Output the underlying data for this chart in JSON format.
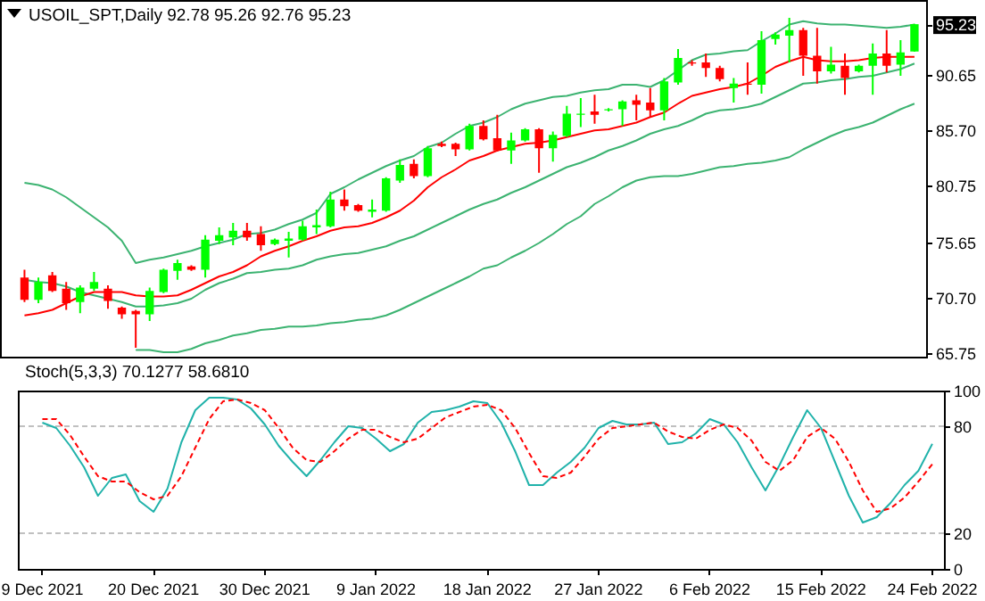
{
  "chart_data": [
    {
      "type": "candlestick",
      "title": "USOIL_SPT,Daily 92.78 95.26 92.76 95.23",
      "categories": [
        null,
        null,
        null,
        null,
        null,
        null,
        null,
        null,
        null,
        null,
        null,
        null,
        null,
        null,
        null,
        null,
        null,
        null,
        null,
        null,
        null,
        null,
        null,
        null,
        null,
        null,
        null,
        null,
        null,
        null,
        null,
        null,
        null,
        null,
        null,
        null,
        null,
        null,
        null,
        null,
        null,
        null,
        null,
        null,
        null,
        null,
        null,
        null,
        null,
        null,
        null,
        null,
        null,
        null,
        null,
        null,
        null,
        null,
        null,
        null,
        null,
        null,
        null,
        null,
        null
      ],
      "ohlc": [
        [
          72.5,
          73.2,
          70.3,
          70.5
        ],
        [
          70.5,
          72.5,
          70.2,
          72.1
        ],
        [
          72.7,
          73.0,
          71.2,
          71.3
        ],
        [
          71.5,
          72.1,
          69.6,
          70.2
        ],
        [
          70.3,
          71.8,
          69.3,
          71.6
        ],
        [
          71.5,
          73.0,
          71.3,
          72.1
        ],
        [
          71.5,
          71.8,
          69.7,
          70.4
        ],
        [
          69.8,
          69.9,
          68.8,
          69.2
        ],
        [
          69.5,
          69.6,
          66.2,
          69.2
        ],
        [
          69.2,
          71.6,
          68.6,
          71.3
        ],
        [
          71.2,
          73.3,
          71.1,
          73.2
        ],
        [
          73.1,
          74.1,
          72.3,
          73.8
        ],
        [
          73.5,
          73.6,
          73.1,
          73.2
        ],
        [
          73.2,
          76.3,
          72.5,
          75.9
        ],
        [
          75.8,
          77.0,
          75.5,
          76.3
        ],
        [
          76.1,
          77.4,
          75.4,
          76.7
        ],
        [
          76.7,
          77.4,
          75.8,
          76.1
        ],
        [
          76.4,
          77.1,
          74.9,
          75.4
        ],
        [
          75.5,
          76.0,
          75.4,
          75.9
        ],
        [
          75.8,
          76.6,
          74.3,
          76.0
        ],
        [
          75.9,
          77.6,
          75.8,
          77.1
        ],
        [
          77.0,
          78.6,
          76.4,
          77.2
        ],
        [
          77.1,
          80.2,
          77.0,
          79.5
        ],
        [
          79.5,
          80.4,
          78.5,
          78.9
        ],
        [
          79.0,
          79.1,
          78.4,
          78.5
        ],
        [
          78.4,
          79.5,
          77.9,
          78.6
        ],
        [
          78.5,
          81.5,
          78.4,
          81.4
        ],
        [
          81.2,
          83.1,
          81.0,
          82.6
        ],
        [
          82.7,
          83.1,
          81.4,
          81.6
        ],
        [
          81.6,
          84.3,
          81.5,
          84.1
        ],
        [
          84.5,
          84.7,
          84.2,
          84.3
        ],
        [
          84.5,
          84.6,
          83.4,
          84.0
        ],
        [
          84.0,
          86.3,
          83.9,
          86.1
        ],
        [
          86.1,
          86.6,
          84.8,
          84.9
        ],
        [
          85.0,
          87.1,
          83.8,
          83.9
        ],
        [
          83.9,
          85.5,
          82.7,
          84.8
        ],
        [
          84.8,
          85.9,
          84.7,
          85.8
        ],
        [
          85.8,
          85.9,
          81.9,
          84.1
        ],
        [
          84.1,
          85.6,
          82.9,
          85.3
        ],
        [
          85.2,
          87.9,
          85.1,
          87.2
        ],
        [
          87.1,
          88.6,
          86.0,
          87.2
        ],
        [
          87.4,
          88.9,
          86.3,
          87.1
        ],
        [
          87.5,
          87.7,
          87.4,
          87.6
        ],
        [
          87.6,
          88.4,
          86.1,
          88.3
        ],
        [
          88.4,
          88.9,
          86.6,
          88.0
        ],
        [
          88.2,
          89.5,
          86.9,
          87.5
        ],
        [
          87.5,
          90.4,
          86.6,
          90.1
        ],
        [
          90.0,
          93.0,
          89.8,
          92.2
        ],
        [
          91.8,
          92.0,
          91.5,
          91.7
        ],
        [
          91.8,
          92.6,
          90.5,
          91.3
        ],
        [
          91.3,
          91.5,
          90.1,
          90.3
        ],
        [
          89.5,
          90.4,
          88.2,
          89.9
        ],
        [
          89.9,
          91.8,
          88.9,
          89.8
        ],
        [
          89.8,
          94.6,
          89.0,
          93.8
        ],
        [
          93.9,
          94.5,
          93.4,
          94.3
        ],
        [
          94.2,
          95.8,
          91.8,
          94.7
        ],
        [
          94.7,
          94.9,
          90.6,
          92.4
        ],
        [
          92.4,
          94.9,
          89.9,
          91.0
        ],
        [
          91.0,
          93.2,
          90.8,
          91.6
        ],
        [
          91.5,
          92.6,
          88.9,
          90.4
        ],
        [
          91.0,
          91.6,
          90.9,
          91.5
        ],
        [
          91.5,
          93.5,
          88.9,
          92.6
        ],
        [
          92.6,
          94.7,
          90.9,
          91.5
        ],
        [
          91.6,
          93.8,
          90.6,
          92.7
        ],
        [
          92.78,
          95.26,
          92.76,
          95.23
        ]
      ],
      "colors": [
        "#ff0000",
        "#00ff00",
        "#ff0000",
        "#ff0000",
        "#00ff00",
        "#00ff00",
        "#ff0000",
        "#ff0000",
        "#ff0000",
        "#00ff00",
        "#00ff00",
        "#00ff00",
        "#ff0000",
        "#00ff00",
        "#00ff00",
        "#00ff00",
        "#ff0000",
        "#ff0000",
        "#00ff00",
        "#00ff00",
        "#00ff00",
        "#00ff00",
        "#00ff00",
        "#ff0000",
        "#ff0000",
        "#00ff00",
        "#00ff00",
        "#00ff00",
        "#ff0000",
        "#00ff00",
        "#ff0000",
        "#ff0000",
        "#00ff00",
        "#ff0000",
        "#ff0000",
        "#00ff00",
        "#00ff00",
        "#ff0000",
        "#00ff00",
        "#00ff00",
        "#00ff00",
        "#ff0000",
        "#00ff00",
        "#00ff00",
        "#ff0000",
        "#ff0000",
        "#00ff00",
        "#00ff00",
        "#ff0000",
        "#ff0000",
        "#ff0000",
        "#00ff00",
        "#ff0000",
        "#00ff00",
        "#00ff00",
        "#00ff00",
        "#ff0000",
        "#ff0000",
        "#00ff00",
        "#ff0000",
        "#00ff00",
        "#00ff00",
        "#ff0000",
        "#00ff00",
        "#00ff00"
      ],
      "series": [
        {
          "type": "line",
          "color": "#3cb371",
          "values": [
            81.0,
            80.8,
            80.4,
            79.7,
            78.8,
            77.9,
            77.0,
            75.8,
            73.8,
            74.1,
            74.3,
            74.6,
            74.9,
            75.3,
            75.6,
            75.9,
            76.4,
            76.5,
            76.8,
            77.3,
            77.7,
            78.3,
            80.0,
            80.6,
            81.3,
            81.9,
            82.5,
            83.0,
            83.4,
            84.2,
            84.6,
            85.4,
            86.1,
            86.4,
            86.9,
            87.6,
            88.1,
            88.4,
            88.7,
            88.8,
            89.1,
            89.3,
            89.4,
            89.8,
            89.8,
            89.6,
            90.2,
            91.1,
            92.0,
            92.5,
            92.6,
            92.8,
            92.9,
            93.7,
            94.4,
            95.2,
            95.5,
            95.3,
            95.2,
            95.2,
            95.1,
            95.0,
            94.9,
            95.0,
            95.2
          ]
        },
        {
          "type": "line",
          "color": "#3cb371",
          "values": [
            72.3,
            72.1,
            72.0,
            71.7,
            71.2,
            70.9,
            70.6,
            70.3,
            69.9,
            69.9,
            70.0,
            70.2,
            70.6,
            71.4,
            72.0,
            72.4,
            72.9,
            73.0,
            73.2,
            73.3,
            73.6,
            74.1,
            74.4,
            74.6,
            74.7,
            75.0,
            75.3,
            75.8,
            76.2,
            76.8,
            77.4,
            78.0,
            78.6,
            79.1,
            79.5,
            80.1,
            80.6,
            81.2,
            81.8,
            82.4,
            82.8,
            83.3,
            83.9,
            84.3,
            84.8,
            85.4,
            85.8,
            86.1,
            86.6,
            87.2,
            87.5,
            87.6,
            87.8,
            88.1,
            88.7,
            89.3,
            89.9,
            90.0,
            90.2,
            90.3,
            90.5,
            90.6,
            90.9,
            91.2,
            91.7
          ]
        },
        {
          "type": "line",
          "color": "#3cb371",
          "values": [
            null,
            null,
            null,
            null,
            null,
            null,
            null,
            null,
            66.0,
            66.0,
            65.8,
            65.8,
            66.1,
            66.6,
            66.9,
            67.3,
            67.5,
            67.8,
            67.9,
            68.1,
            68.1,
            68.2,
            68.4,
            68.5,
            68.7,
            68.8,
            69.1,
            69.6,
            70.2,
            70.8,
            71.4,
            72.0,
            72.6,
            73.3,
            73.6,
            74.3,
            74.9,
            75.6,
            76.4,
            77.3,
            78.0,
            79.1,
            79.8,
            80.6,
            81.2,
            81.5,
            81.6,
            81.6,
            81.8,
            82.1,
            82.4,
            82.5,
            82.7,
            82.8,
            83.0,
            83.3,
            84.0,
            84.6,
            85.2,
            85.7,
            86.0,
            86.4,
            87.0,
            87.6,
            88.1
          ]
        },
        {
          "type": "line",
          "color": "#ff0000",
          "values": [
            69.1,
            69.3,
            69.6,
            70.2,
            70.8,
            71.2,
            71.2,
            71.2,
            70.9,
            70.8,
            70.8,
            70.9,
            71.4,
            72.0,
            72.6,
            73.0,
            73.6,
            74.4,
            74.9,
            75.3,
            75.8,
            76.2,
            76.7,
            77.0,
            77.1,
            77.4,
            77.9,
            78.5,
            79.4,
            80.6,
            81.5,
            82.2,
            83.0,
            83.4,
            83.9,
            84.2,
            84.5,
            84.6,
            84.8,
            85.1,
            85.4,
            85.7,
            85.8,
            86.1,
            86.4,
            86.9,
            87.3,
            88.1,
            88.8,
            89.1,
            89.4,
            89.6,
            89.9,
            90.6,
            91.4,
            91.9,
            92.3,
            92.0,
            91.9,
            91.9,
            92.0,
            92.2,
            92.3,
            92.3,
            92.3
          ]
        }
      ],
      "ylim": [
        65.4,
        97.4
      ],
      "yticks": [
        65.75,
        {
          "value": 70.7,
          "label": "70.70"
        },
        75.65,
        80.75,
        {
          "value": 85.7,
          "label": "85.70"
        },
        90.65,
        95.23
      ]
    },
    {
      "type": "line",
      "title": "Stoch(5,3,3) 70.1277 58.6810",
      "categories": [
        "9 Dec 2021",
        null,
        null,
        null,
        null,
        null,
        null,
        null,
        "20 Dec 2021",
        null,
        null,
        null,
        null,
        null,
        null,
        null,
        "30 Dec 2021",
        null,
        null,
        null,
        null,
        null,
        null,
        null,
        "9 Jan 2022",
        null,
        null,
        null,
        null,
        null,
        null,
        null,
        "18 Jan 2022",
        null,
        null,
        null,
        null,
        null,
        null,
        null,
        "27 Jan 2022",
        null,
        null,
        null,
        null,
        null,
        null,
        null,
        "6 Feb 2022",
        null,
        null,
        null,
        null,
        null,
        null,
        null,
        "15 Feb 2022",
        null,
        null,
        null,
        null,
        null,
        null,
        null,
        "24 Feb 2022"
      ],
      "series": [
        {
          "color": "#20b2aa",
          "values": [
            82,
            79,
            69,
            57,
            41,
            51,
            53,
            38,
            32,
            45,
            71,
            89,
            96,
            96,
            95,
            90,
            81,
            69,
            60,
            52,
            61,
            71,
            80,
            79,
            73,
            66,
            70,
            82,
            88,
            89,
            91,
            94,
            93,
            82,
            66,
            47,
            47,
            54,
            60,
            68,
            79,
            83,
            81,
            81,
            82,
            70,
            71,
            76,
            84,
            81,
            71,
            57,
            44,
            58,
            74,
            89,
            79,
            60,
            41,
            26,
            29,
            37,
            47,
            55,
            70.1277
          ]
        },
        {
          "color": "#ff0000",
          "line_style": "dashed",
          "values": [
            84,
            84,
            75,
            63,
            52,
            49,
            49,
            43,
            39,
            41,
            52,
            68,
            84,
            94,
            95,
            93,
            89,
            79,
            68,
            61,
            60,
            66,
            73,
            78,
            78,
            74,
            71,
            73,
            79,
            85,
            88,
            91,
            92,
            89,
            79,
            65,
            52,
            51,
            54,
            63,
            73,
            79,
            80,
            81,
            82,
            77,
            74,
            73,
            78,
            81,
            79,
            72,
            60,
            55,
            61,
            74,
            79,
            73,
            60,
            44,
            32,
            34,
            40,
            49,
            58.681
          ]
        }
      ],
      "ylim": [
        0,
        100
      ],
      "yticks": [
        0,
        20,
        80,
        100
      ],
      "ref_lines": [
        {
          "axis": "y",
          "value": 80,
          "color": "#c0c0c0",
          "line_style": "dashed"
        },
        {
          "axis": "y",
          "value": 20,
          "color": "#c0c0c0",
          "line_style": "dashed"
        }
      ]
    }
  ]
}
